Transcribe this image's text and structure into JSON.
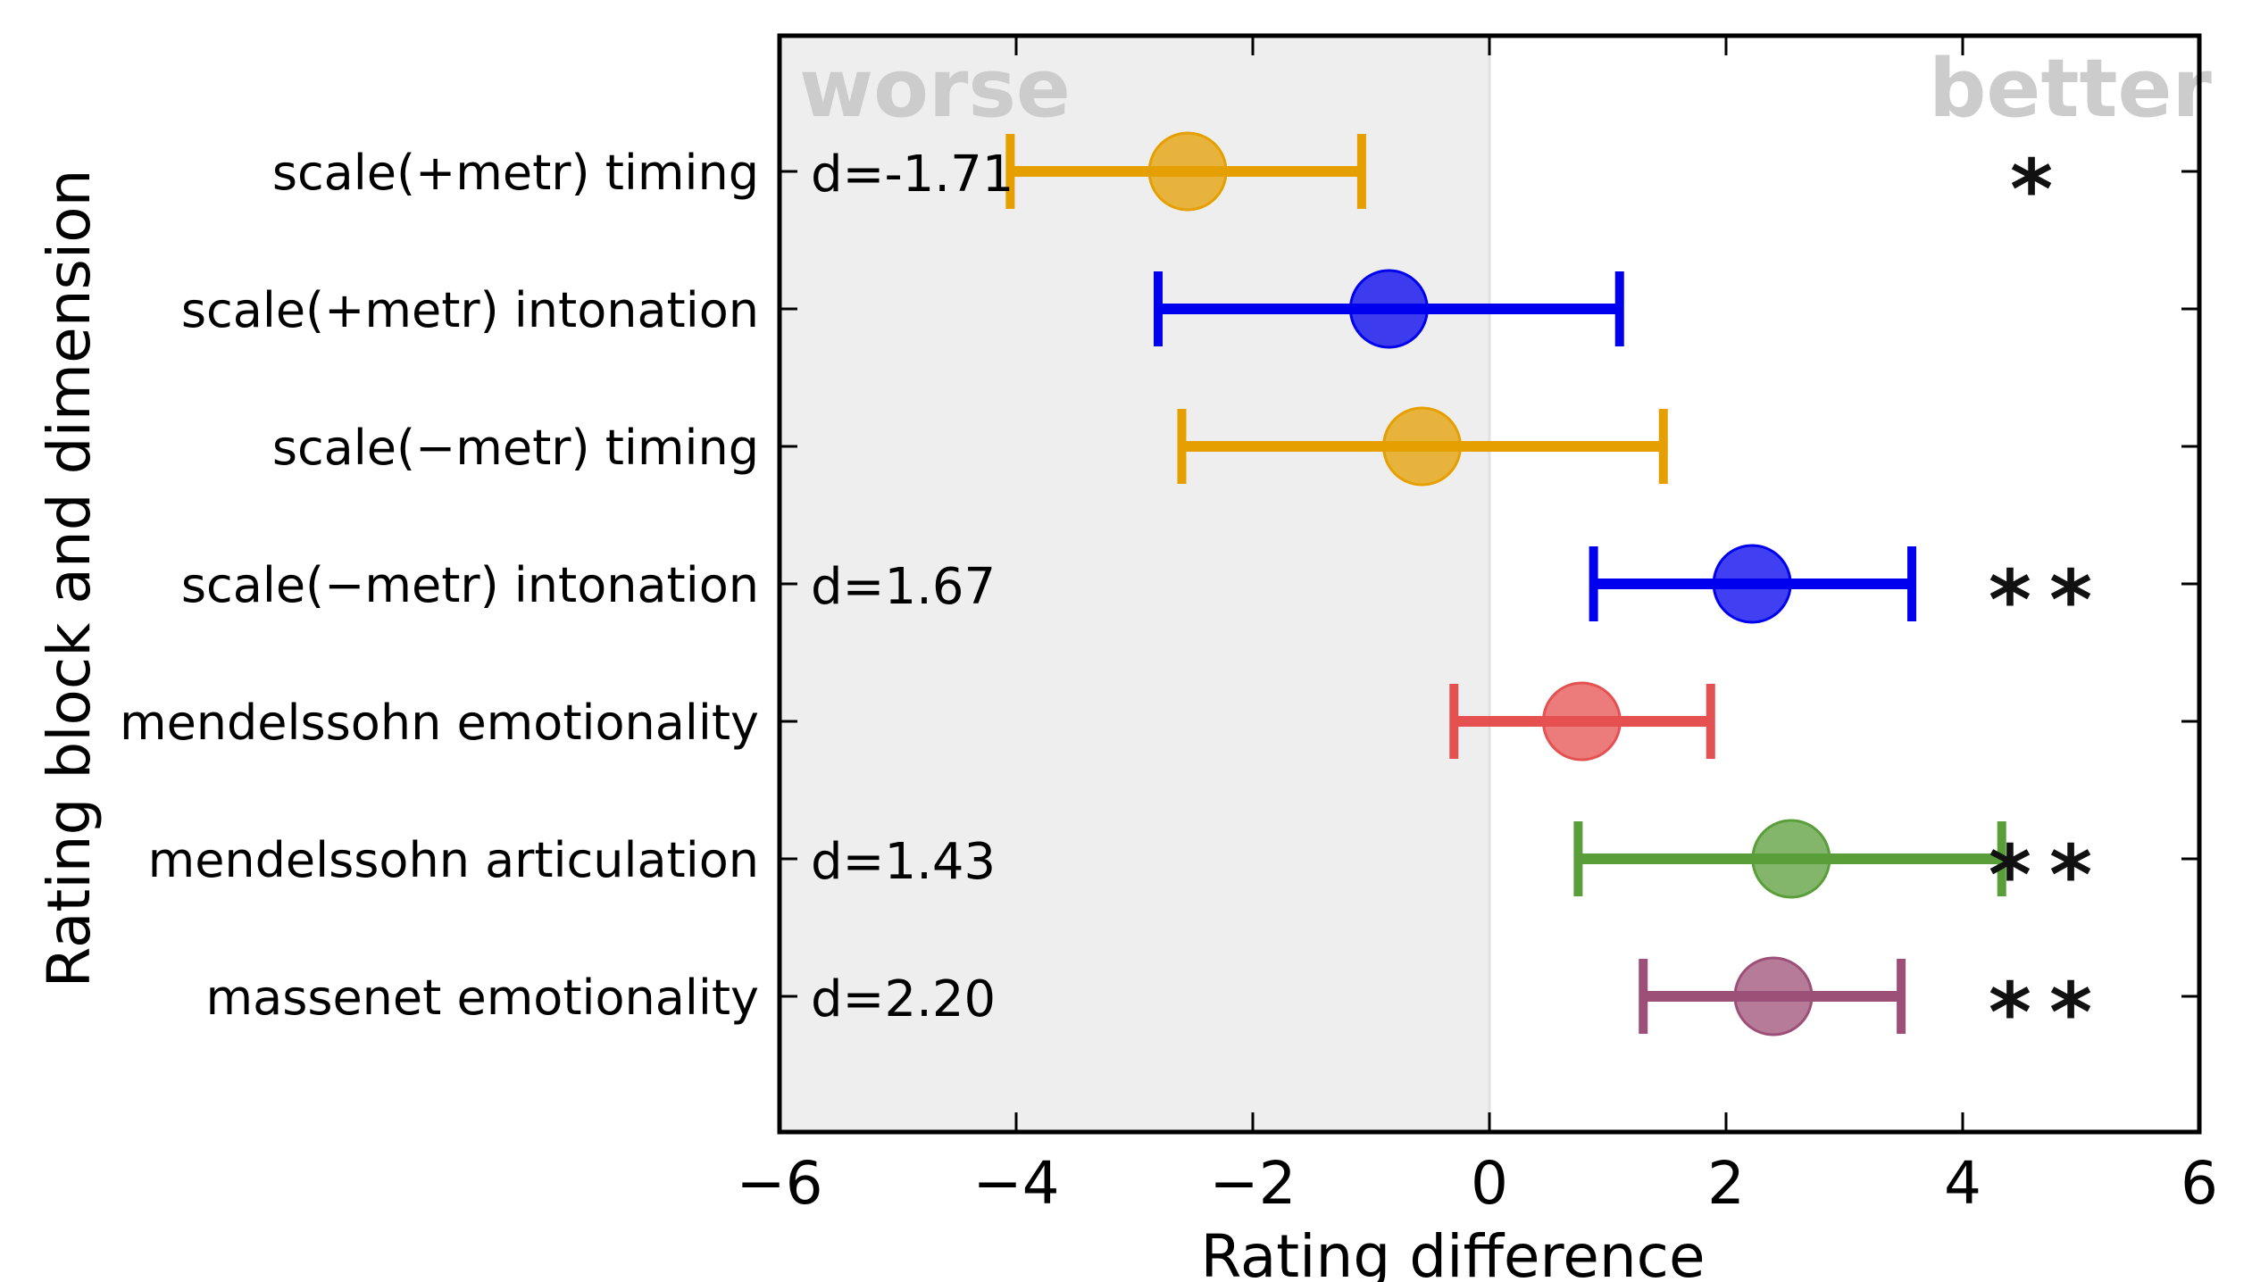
{
  "chart_data": {
    "type": "errorbar",
    "title": "",
    "xlabel": "Rating difference",
    "ylabel": "Rating block and dimension",
    "xlim": [
      -6,
      6
    ],
    "xticks": [
      "−6",
      "−4",
      "−2",
      "0",
      "2",
      "4",
      "6"
    ],
    "xtick_values": [
      -6,
      -4,
      -2,
      0,
      2,
      4,
      6
    ],
    "shaded_region": {
      "from": -6,
      "to": 0,
      "color": "#eeeeee"
    },
    "region_labels": {
      "left": "worse",
      "right": "better"
    },
    "grid": false,
    "items": [
      {
        "label": "scale(+metr) timing",
        "mean": -2.55,
        "low": -4.05,
        "high": -1.08,
        "color": "#e69f00",
        "effect": "d=-1.71",
        "sig": "*"
      },
      {
        "label": "scale(+metr) intonation",
        "mean": -0.85,
        "low": -2.8,
        "high": 1.1,
        "color": "#0000ee",
        "effect": "",
        "sig": ""
      },
      {
        "label": "scale(−metr) timing",
        "mean": -0.57,
        "low": -2.6,
        "high": 1.47,
        "color": "#e69f00",
        "effect": "",
        "sig": ""
      },
      {
        "label": "scale(−metr) intonation",
        "mean": 2.22,
        "low": 0.88,
        "high": 3.57,
        "color": "#0000ee",
        "effect": "d=1.67",
        "sig": "**"
      },
      {
        "label": "mendelssohn emotionality",
        "mean": 0.78,
        "low": -0.3,
        "high": 1.87,
        "color": "#e55050",
        "effect": "",
        "sig": ""
      },
      {
        "label": "mendelssohn articulation",
        "mean": 2.55,
        "low": 0.75,
        "high": 4.33,
        "color": "#5a9e3a",
        "effect": "d=1.43",
        "sig": "**"
      },
      {
        "label": "massenet emotionality",
        "mean": 2.4,
        "low": 1.3,
        "high": 3.48,
        "color": "#9c4f77",
        "effect": "d=2.20",
        "sig": "**"
      }
    ]
  }
}
